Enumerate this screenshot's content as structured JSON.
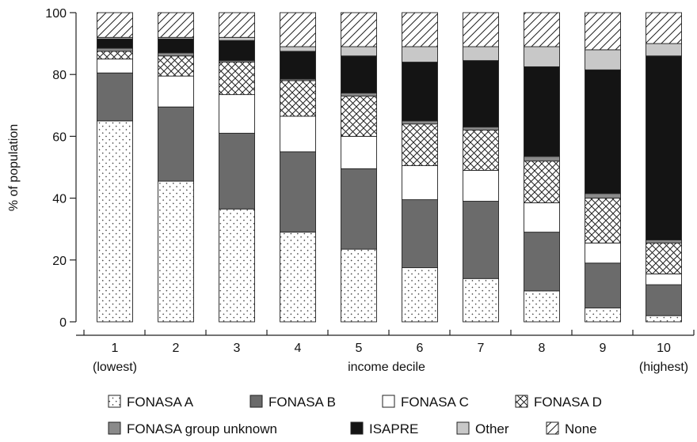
{
  "chart_data": {
    "type": "bar",
    "stacked": true,
    "title": "",
    "xlabel": "income decile",
    "ylabel": "% of population",
    "ylim": [
      0,
      100
    ],
    "yticks": [
      0,
      20,
      40,
      60,
      80,
      100
    ],
    "categories": [
      "1",
      "2",
      "3",
      "4",
      "5",
      "6",
      "7",
      "8",
      "9",
      "10"
    ],
    "category_sublabels": {
      "first": "(lowest)",
      "last": "(highest)"
    },
    "grid": false,
    "legend_position": "bottom",
    "series": [
      {
        "name": "FONASA A",
        "pattern": "dots-diagonal",
        "values": [
          65,
          45.5,
          36.5,
          29,
          23.5,
          17.5,
          14,
          10,
          4.5,
          2
        ]
      },
      {
        "name": "FONASA B",
        "pattern": "solid-dark-gray",
        "values": [
          15.5,
          24,
          24.5,
          26,
          26,
          22,
          25,
          19,
          14.5,
          10
        ]
      },
      {
        "name": "FONASA C",
        "pattern": "white",
        "values": [
          4.5,
          10,
          12.5,
          11.5,
          10.5,
          11,
          10,
          9.5,
          6.5,
          3.5
        ]
      },
      {
        "name": "FONASA D",
        "pattern": "crosshatch",
        "values": [
          2.5,
          6.5,
          10.5,
          11.5,
          13,
          13.5,
          13,
          13.5,
          14.5,
          10
        ]
      },
      {
        "name": "FONASA group unknown",
        "pattern": "solid-gray",
        "values": [
          1,
          1,
          0.5,
          0.5,
          1,
          1,
          1,
          1.5,
          1.5,
          1
        ]
      },
      {
        "name": "ISAPRE",
        "pattern": "solid-black",
        "values": [
          3,
          4.5,
          6.5,
          9,
          12,
          19,
          21.5,
          29,
          40,
          59.5
        ]
      },
      {
        "name": "Other",
        "pattern": "solid-light-gray",
        "values": [
          0.5,
          0.5,
          1,
          1.5,
          3,
          5,
          4.5,
          6.5,
          6.5,
          4
        ]
      },
      {
        "name": "None",
        "pattern": "diagonal-lines",
        "values": [
          8,
          8,
          8,
          11,
          11,
          11,
          11,
          11,
          12,
          10
        ]
      }
    ]
  },
  "colors": {
    "fonasa_b": "#6b6b6b",
    "isapre": "#141414",
    "unknown": "#8a8a8a",
    "other": "#c8c8c8",
    "outline": "#222222"
  }
}
